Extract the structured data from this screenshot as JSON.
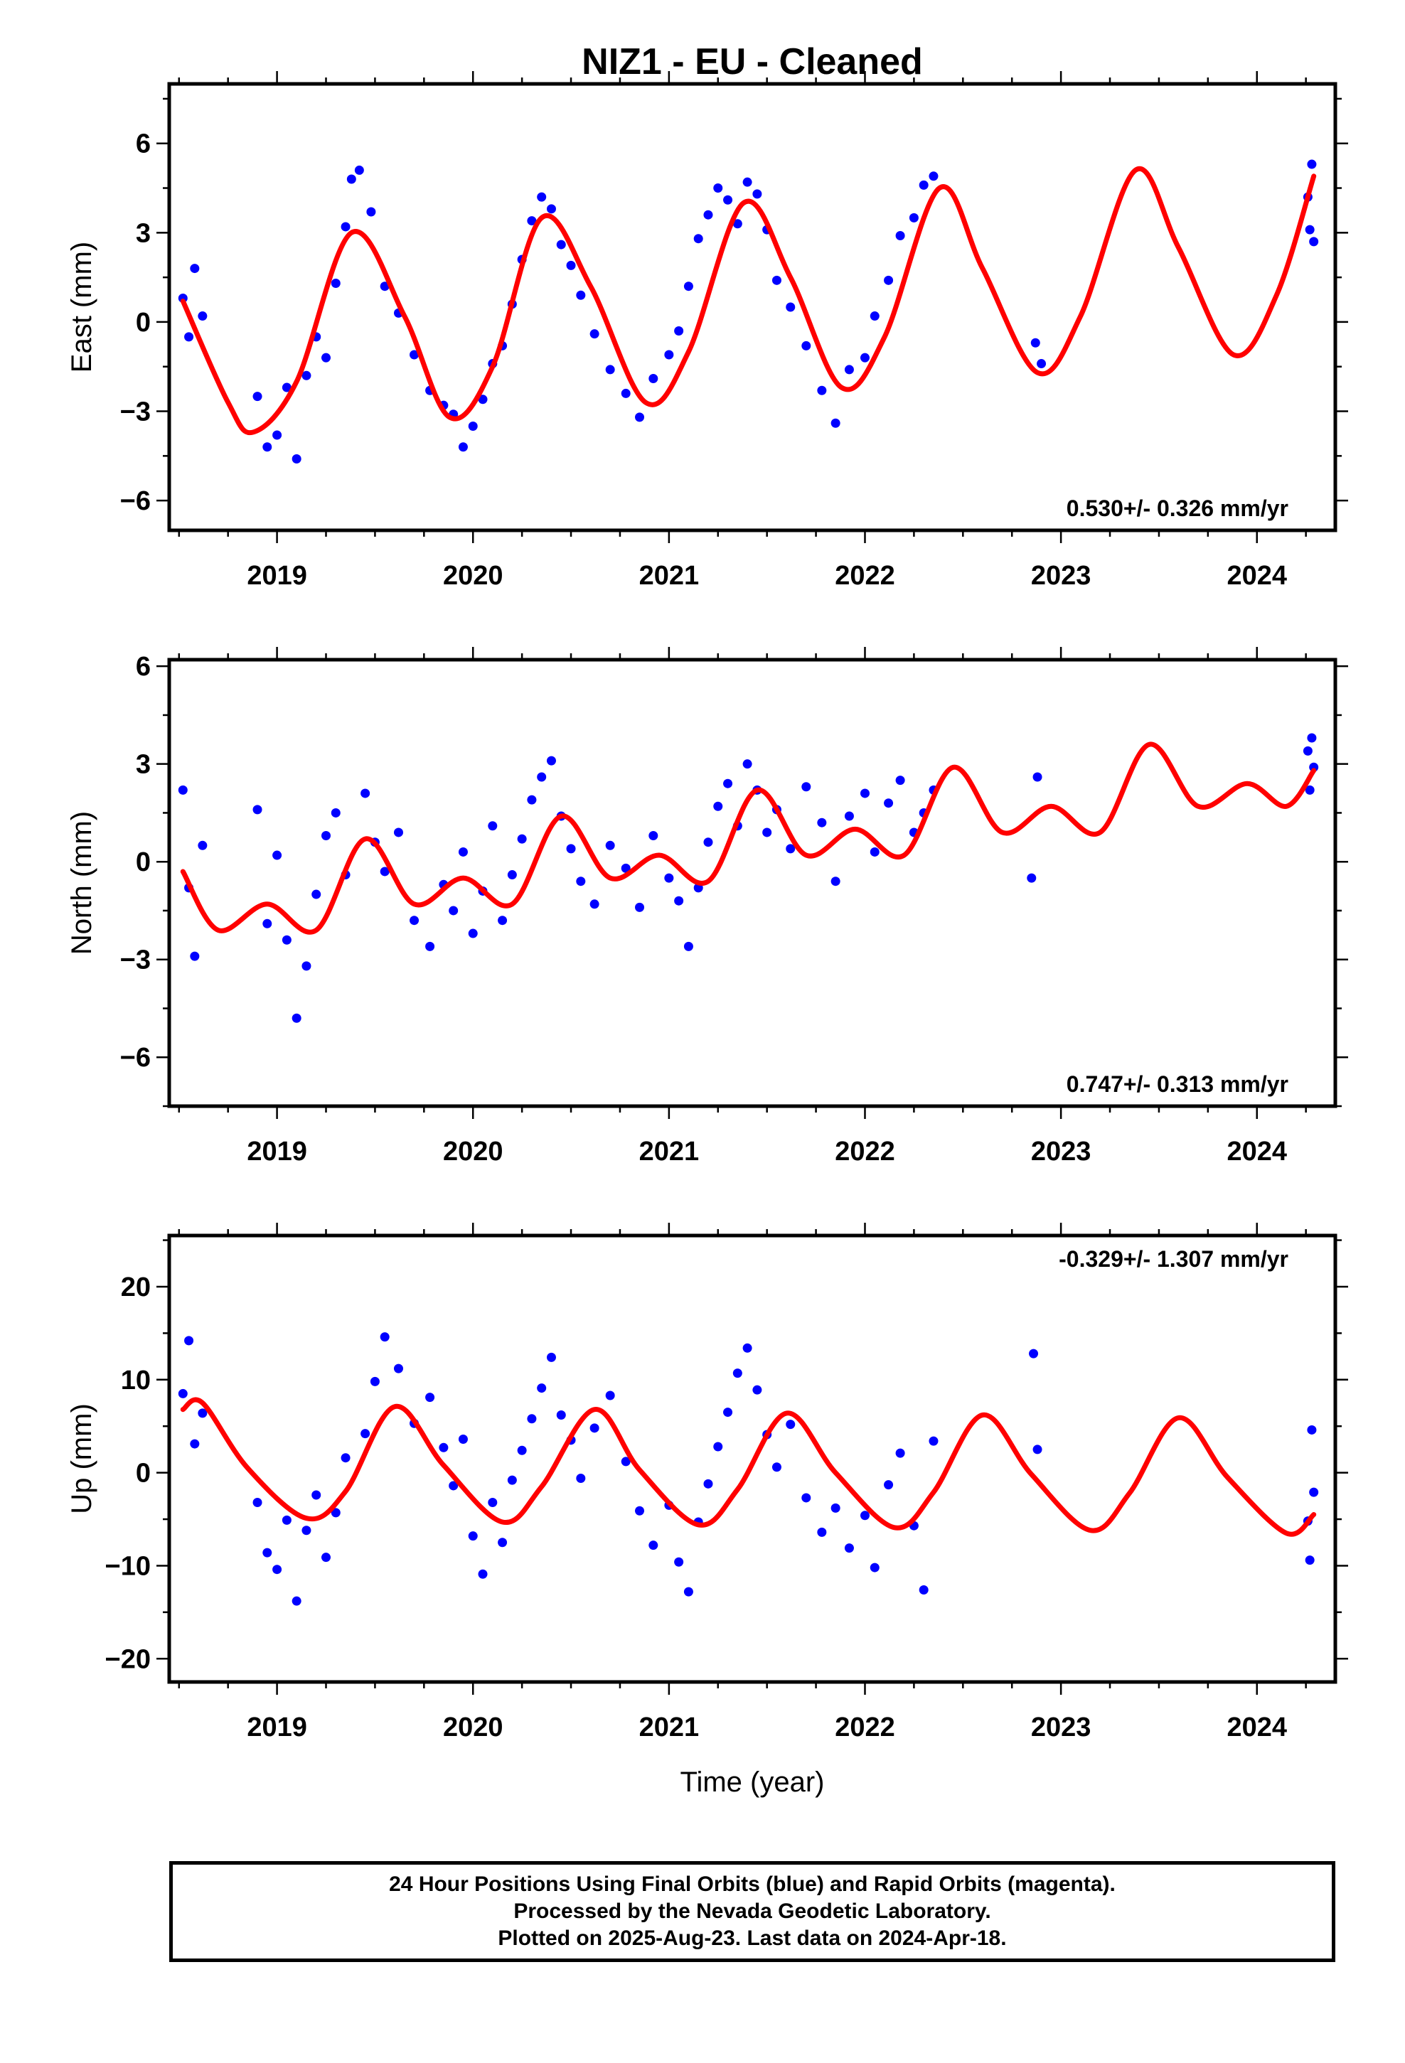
{
  "chart_data": [
    {
      "type": "scatter",
      "title": "NIZ1  - EU - Cleaned",
      "ylabel": "East (mm)",
      "xlabel": "",
      "xlim": [
        2018.45,
        2024.4
      ],
      "ylim": [
        -7,
        8
      ],
      "xticks": [
        2019,
        2020,
        2021,
        2022,
        2023,
        2024
      ],
      "yticks": [
        -6,
        -3,
        0,
        3,
        6
      ],
      "grid": false,
      "annotation": "0.530+/- 0.326 mm/yr",
      "series": [
        {
          "kind": "points",
          "color": "#0000ff",
          "x": [
            2018.52,
            2018.55,
            2018.58,
            2018.62,
            2018.9,
            2018.95,
            2019.0,
            2019.05,
            2019.1,
            2019.15,
            2019.2,
            2019.25,
            2019.3,
            2019.35,
            2019.38,
            2019.42,
            2019.48,
            2019.55,
            2019.62,
            2019.7,
            2019.78,
            2019.85,
            2019.9,
            2019.95,
            2020.0,
            2020.05,
            2020.1,
            2020.15,
            2020.2,
            2020.25,
            2020.3,
            2020.35,
            2020.4,
            2020.45,
            2020.5,
            2020.55,
            2020.62,
            2020.7,
            2020.78,
            2020.85,
            2020.92,
            2021.0,
            2021.05,
            2021.1,
            2021.15,
            2021.2,
            2021.25,
            2021.3,
            2021.35,
            2021.4,
            2021.45,
            2021.5,
            2021.55,
            2021.62,
            2021.7,
            2021.78,
            2021.85,
            2021.92,
            2022.0,
            2022.05,
            2022.12,
            2022.18,
            2022.25,
            2022.3,
            2022.35,
            2022.87,
            2022.9,
            2024.26,
            2024.27,
            2024.28,
            2024.29
          ],
          "y": [
            0.8,
            -0.5,
            1.8,
            0.2,
            -2.5,
            -4.2,
            -3.8,
            -2.2,
            -4.6,
            -1.8,
            -0.5,
            -1.2,
            1.3,
            3.2,
            4.8,
            5.1,
            3.7,
            1.2,
            0.3,
            -1.1,
            -2.3,
            -2.8,
            -3.1,
            -4.2,
            -3.5,
            -2.6,
            -1.4,
            -0.8,
            0.6,
            2.1,
            3.4,
            4.2,
            3.8,
            2.6,
            1.9,
            0.9,
            -0.4,
            -1.6,
            -2.4,
            -3.2,
            -1.9,
            -1.1,
            -0.3,
            1.2,
            2.8,
            3.6,
            4.5,
            4.1,
            3.3,
            4.7,
            4.3,
            3.1,
            1.4,
            0.5,
            -0.8,
            -2.3,
            -3.4,
            -1.6,
            -1.2,
            0.2,
            1.4,
            2.9,
            3.5,
            4.6,
            4.9,
            -0.7,
            -1.4,
            4.2,
            3.1,
            5.3,
            2.7
          ]
        },
        {
          "kind": "model",
          "color": "#ff0000",
          "x": [
            2018.52,
            2018.75,
            2018.88,
            2019.1,
            2019.38,
            2019.65,
            2019.88,
            2020.1,
            2020.35,
            2020.6,
            2020.88,
            2021.1,
            2021.38,
            2021.62,
            2021.88,
            2022.1,
            2022.38,
            2022.6,
            2022.88,
            2023.1,
            2023.38,
            2023.6,
            2023.88,
            2024.1,
            2024.29
          ],
          "y": [
            0.7,
            -2.7,
            -3.7,
            -2.0,
            3.0,
            0.2,
            -3.2,
            -1.5,
            3.5,
            1.2,
            -2.7,
            -1.0,
            4.0,
            1.5,
            -2.2,
            -0.5,
            4.5,
            1.8,
            -1.7,
            0.2,
            5.1,
            2.5,
            -1.1,
            0.9,
            4.9
          ]
        }
      ]
    },
    {
      "type": "scatter",
      "title": "",
      "ylabel": "North (mm)",
      "xlabel": "",
      "xlim": [
        2018.45,
        2024.4
      ],
      "ylim": [
        -7.5,
        6.2
      ],
      "xticks": [
        2019,
        2020,
        2021,
        2022,
        2023,
        2024
      ],
      "yticks": [
        -6,
        -3,
        0,
        3,
        6
      ],
      "grid": false,
      "annotation": "0.747+/- 0.313 mm/yr",
      "series": [
        {
          "kind": "points",
          "color": "#0000ff",
          "x": [
            2018.52,
            2018.55,
            2018.58,
            2018.62,
            2018.9,
            2018.95,
            2019.0,
            2019.05,
            2019.1,
            2019.15,
            2019.2,
            2019.25,
            2019.3,
            2019.35,
            2019.45,
            2019.5,
            2019.55,
            2019.62,
            2019.7,
            2019.78,
            2019.85,
            2019.9,
            2019.95,
            2020.0,
            2020.05,
            2020.1,
            2020.15,
            2020.2,
            2020.25,
            2020.3,
            2020.35,
            2020.4,
            2020.45,
            2020.5,
            2020.55,
            2020.62,
            2020.7,
            2020.78,
            2020.85,
            2020.92,
            2021.0,
            2021.05,
            2021.1,
            2021.15,
            2021.2,
            2021.25,
            2021.3,
            2021.35,
            2021.4,
            2021.45,
            2021.5,
            2021.55,
            2021.62,
            2021.7,
            2021.78,
            2021.85,
            2021.92,
            2022.0,
            2022.05,
            2022.12,
            2022.18,
            2022.25,
            2022.3,
            2022.35,
            2022.85,
            2022.88,
            2024.26,
            2024.27,
            2024.28,
            2024.29
          ],
          "y": [
            2.2,
            -0.8,
            -2.9,
            0.5,
            1.6,
            -1.9,
            0.2,
            -2.4,
            -4.8,
            -3.2,
            -1.0,
            0.8,
            1.5,
            -0.4,
            2.1,
            0.6,
            -0.3,
            0.9,
            -1.8,
            -2.6,
            -0.7,
            -1.5,
            0.3,
            -2.2,
            -0.9,
            1.1,
            -1.8,
            -0.4,
            0.7,
            1.9,
            2.6,
            3.1,
            1.4,
            0.4,
            -0.6,
            -1.3,
            0.5,
            -0.2,
            -1.4,
            0.8,
            -0.5,
            -1.2,
            -2.6,
            -0.8,
            0.6,
            1.7,
            2.4,
            1.1,
            3.0,
            2.2,
            0.9,
            1.6,
            0.4,
            2.3,
            1.2,
            -0.6,
            1.4,
            2.1,
            0.3,
            1.8,
            2.5,
            0.9,
            1.5,
            2.2,
            -0.5,
            2.6,
            3.4,
            2.2,
            3.8,
            2.9
          ]
        },
        {
          "kind": "model",
          "color": "#ff0000",
          "x": [
            2018.52,
            2018.7,
            2018.95,
            2019.2,
            2019.45,
            2019.7,
            2019.95,
            2020.2,
            2020.45,
            2020.7,
            2020.95,
            2021.2,
            2021.45,
            2021.7,
            2021.95,
            2022.2,
            2022.45,
            2022.7,
            2022.95,
            2023.2,
            2023.45,
            2023.7,
            2023.95,
            2024.15,
            2024.29
          ],
          "y": [
            -0.3,
            -2.1,
            -1.3,
            -2.1,
            0.7,
            -1.3,
            -0.5,
            -1.3,
            1.4,
            -0.5,
            0.2,
            -0.6,
            2.2,
            0.2,
            1.0,
            0.2,
            2.9,
            0.9,
            1.7,
            0.9,
            3.6,
            1.7,
            2.4,
            1.7,
            2.8
          ]
        }
      ]
    },
    {
      "type": "scatter",
      "title": "",
      "ylabel": "Up (mm)",
      "xlabel": "Time (year)",
      "xlim": [
        2018.45,
        2024.4
      ],
      "ylim": [
        -22.5,
        25.5
      ],
      "xticks": [
        2019,
        2020,
        2021,
        2022,
        2023,
        2024
      ],
      "yticks": [
        -20,
        -10,
        0,
        10,
        20
      ],
      "grid": false,
      "annotation": "-0.329+/- 1.307 mm/yr",
      "series": [
        {
          "kind": "points",
          "color": "#0000ff",
          "x": [
            2018.52,
            2018.55,
            2018.58,
            2018.62,
            2018.9,
            2018.95,
            2019.0,
            2019.05,
            2019.1,
            2019.15,
            2019.2,
            2019.25,
            2019.3,
            2019.35,
            2019.45,
            2019.5,
            2019.55,
            2019.62,
            2019.7,
            2019.78,
            2019.85,
            2019.9,
            2019.95,
            2020.0,
            2020.05,
            2020.1,
            2020.15,
            2020.2,
            2020.25,
            2020.3,
            2020.35,
            2020.4,
            2020.45,
            2020.5,
            2020.55,
            2020.62,
            2020.7,
            2020.78,
            2020.85,
            2020.92,
            2021.0,
            2021.05,
            2021.1,
            2021.15,
            2021.2,
            2021.25,
            2021.3,
            2021.35,
            2021.4,
            2021.45,
            2021.5,
            2021.55,
            2021.62,
            2021.7,
            2021.78,
            2021.85,
            2021.92,
            2022.0,
            2022.05,
            2022.12,
            2022.18,
            2022.25,
            2022.3,
            2022.35,
            2022.86,
            2022.88,
            2024.26,
            2024.27,
            2024.28,
            2024.29
          ],
          "y": [
            8.5,
            14.2,
            3.1,
            6.4,
            -3.2,
            -8.6,
            -10.4,
            -5.1,
            -13.8,
            -6.2,
            -2.4,
            -9.1,
            -4.3,
            1.6,
            4.2,
            9.8,
            14.6,
            11.2,
            5.3,
            8.1,
            2.7,
            -1.4,
            3.6,
            -6.8,
            -10.9,
            -3.2,
            -7.5,
            -0.8,
            2.4,
            5.8,
            9.1,
            12.4,
            6.2,
            3.5,
            -0.6,
            4.8,
            8.3,
            1.2,
            -4.1,
            -7.8,
            -3.5,
            -9.6,
            -12.8,
            -5.3,
            -1.2,
            2.8,
            6.5,
            10.7,
            13.4,
            8.9,
            4.1,
            0.6,
            5.2,
            -2.7,
            -6.4,
            -3.8,
            -8.1,
            -4.6,
            -10.2,
            -1.3,
            2.1,
            -5.7,
            -12.6,
            3.4,
            12.8,
            2.5,
            -5.2,
            -9.4,
            4.6,
            -2.1
          ]
        },
        {
          "kind": "model",
          "color": "#ff0000",
          "x": [
            2018.52,
            2018.62,
            2018.85,
            2019.15,
            2019.35,
            2019.6,
            2019.85,
            2020.15,
            2020.35,
            2020.62,
            2020.85,
            2021.15,
            2021.35,
            2021.6,
            2021.85,
            2022.15,
            2022.35,
            2022.6,
            2022.85,
            2023.15,
            2023.35,
            2023.6,
            2023.85,
            2024.15,
            2024.29
          ],
          "y": [
            6.8,
            7.5,
            0.5,
            -4.9,
            -2.0,
            7.1,
            0.8,
            -5.3,
            -1.5,
            6.8,
            0.3,
            -5.6,
            -1.8,
            6.4,
            0.0,
            -5.9,
            -2.1,
            6.2,
            -0.2,
            -6.2,
            -2.2,
            5.9,
            -0.5,
            -6.5,
            -4.5
          ]
        }
      ]
    }
  ],
  "footer": {
    "lines": [
      "24 Hour Positions Using Final Orbits (blue) and Rapid Orbits (magenta).",
      "Processed by the Nevada Geodetic Laboratory.",
      "Plotted on 2025-Aug-23. Last data on 2024-Apr-18."
    ]
  }
}
